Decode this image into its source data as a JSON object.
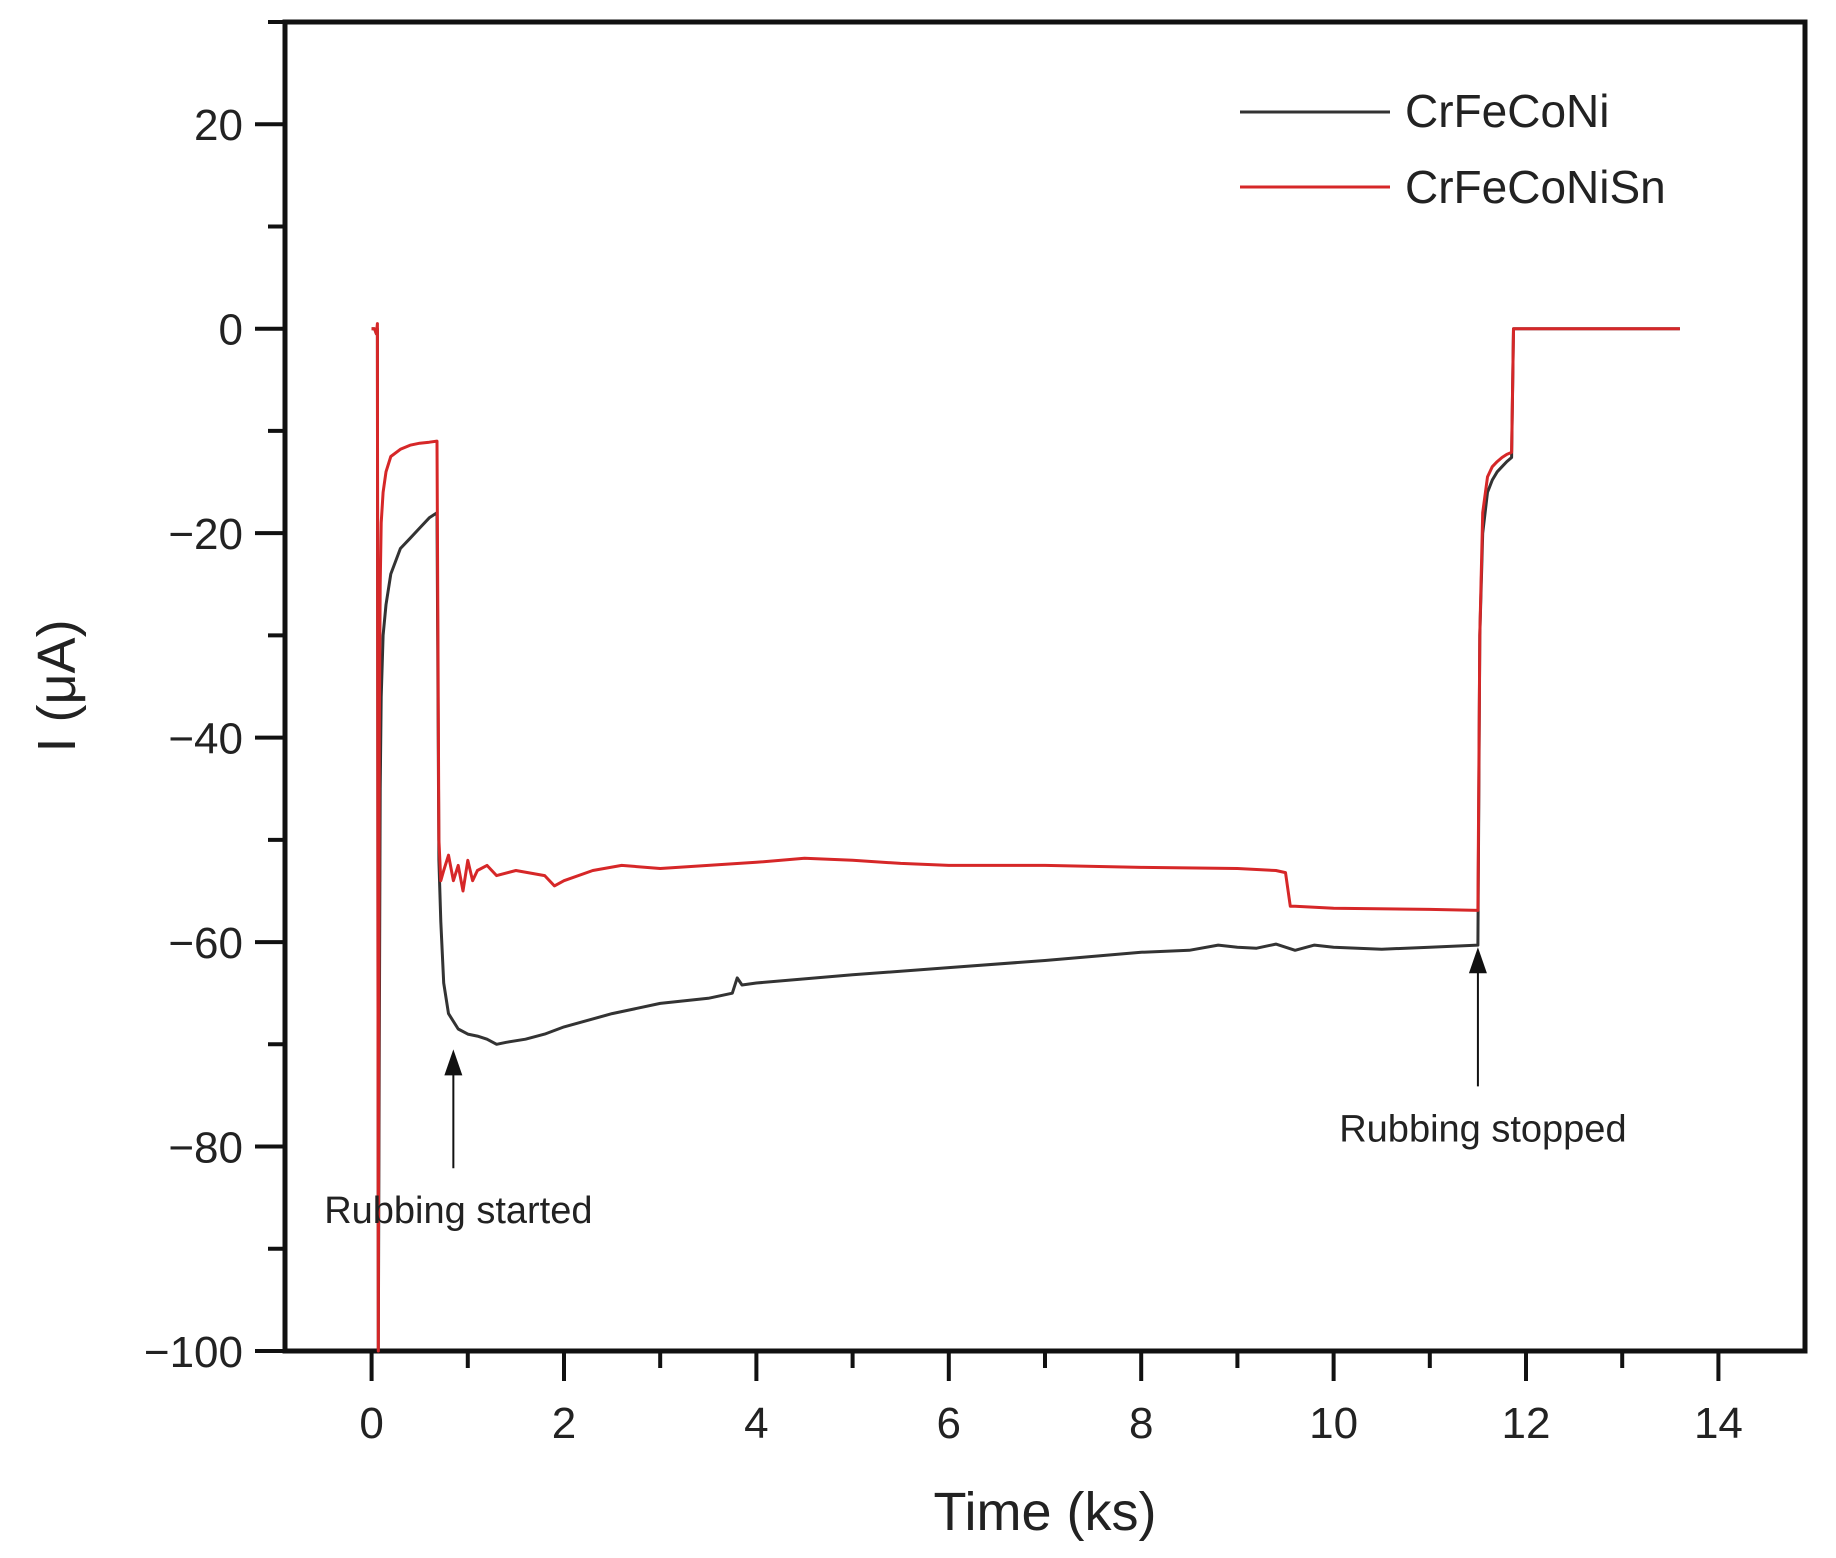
{
  "chart_data": {
    "type": "line",
    "title": "",
    "xlabel": "Time (ks)",
    "ylabel": "I (μA)",
    "xlim": [
      -0.9,
      14.9
    ],
    "ylim": [
      -100,
      30
    ],
    "x_ticks": [
      0,
      2,
      4,
      6,
      8,
      10,
      12,
      14
    ],
    "x_tick_labels": [
      "0",
      "2",
      "4",
      "6",
      "8",
      "10",
      "12",
      "14"
    ],
    "y_ticks": [
      20,
      0,
      -20,
      -40,
      -60,
      -80,
      -100
    ],
    "y_tick_labels": [
      "20",
      "0",
      "−20",
      "−40",
      "−60",
      "−80",
      "−100"
    ],
    "legend_position": "top-right",
    "series": [
      {
        "name": "CrFeCoNi",
        "color": "#333333",
        "x": [
          0.0,
          0.03,
          0.05,
          0.06,
          0.07,
          0.08,
          0.09,
          0.1,
          0.12,
          0.15,
          0.2,
          0.3,
          0.4,
          0.5,
          0.6,
          0.68,
          0.7,
          0.72,
          0.75,
          0.8,
          0.9,
          1.0,
          1.1,
          1.2,
          1.3,
          1.4,
          1.6,
          1.8,
          2.0,
          2.5,
          3.0,
          3.5,
          3.75,
          3.8,
          3.85,
          4.0,
          5.0,
          6.0,
          7.0,
          8.0,
          8.5,
          8.8,
          9.0,
          9.2,
          9.4,
          9.6,
          9.8,
          10.0,
          10.5,
          11.0,
          11.5,
          11.52,
          11.55,
          11.6,
          11.65,
          11.7,
          11.75,
          11.8,
          11.85,
          11.87,
          11.9,
          12.5,
          13.0,
          13.6
        ],
        "values": [
          0,
          0,
          -0.5,
          0,
          -100,
          -70,
          -45,
          -36,
          -30,
          -27,
          -24,
          -21.5,
          -20.5,
          -19.5,
          -18.5,
          -18,
          -52,
          -58,
          -64,
          -67,
          -68.5,
          -69,
          -69.2,
          -69.5,
          -70,
          -69.8,
          -69.5,
          -69,
          -68.3,
          -67,
          -66,
          -65.5,
          -65,
          -63.5,
          -64.2,
          -64,
          -63.2,
          -62.5,
          -61.8,
          -61,
          -60.8,
          -60.3,
          -60.5,
          -60.6,
          -60.2,
          -60.8,
          -60.3,
          -60.5,
          -60.7,
          -60.5,
          -60.3,
          -30,
          -20,
          -16,
          -14.8,
          -14,
          -13.5,
          -13,
          -12.6,
          0,
          0,
          0,
          0,
          0
        ]
      },
      {
        "name": "CrFeCoNiSn",
        "color": "#d62728",
        "x": [
          0.0,
          0.03,
          0.05,
          0.06,
          0.07,
          0.08,
          0.09,
          0.1,
          0.12,
          0.15,
          0.2,
          0.3,
          0.4,
          0.5,
          0.6,
          0.68,
          0.7,
          0.72,
          0.75,
          0.8,
          0.85,
          0.9,
          0.95,
          1.0,
          1.05,
          1.1,
          1.2,
          1.3,
          1.5,
          1.8,
          1.9,
          2.0,
          2.3,
          2.6,
          3.0,
          3.5,
          4.0,
          4.5,
          5.0,
          5.5,
          6.0,
          7.0,
          8.0,
          9.0,
          9.4,
          9.5,
          9.55,
          9.6,
          9.8,
          10.0,
          11.0,
          11.5,
          11.52,
          11.55,
          11.6,
          11.65,
          11.7,
          11.75,
          11.8,
          11.85,
          11.87,
          11.9,
          12.5,
          13.0,
          13.6
        ],
        "values": [
          0,
          0,
          -0.5,
          0.5,
          -100,
          -40,
          -25,
          -19,
          -16,
          -14,
          -12.5,
          -11.8,
          -11.4,
          -11.2,
          -11.1,
          -11,
          -50,
          -54,
          -53,
          -51.5,
          -54,
          -52.5,
          -55,
          -52,
          -54,
          -53,
          -52.5,
          -53.5,
          -53,
          -53.5,
          -54.5,
          -54,
          -53,
          -52.5,
          -52.8,
          -52.5,
          -52.2,
          -51.8,
          -52,
          -52.3,
          -52.5,
          -52.5,
          -52.7,
          -52.8,
          -53,
          -53.2,
          -56.5,
          -56.5,
          -56.6,
          -56.7,
          -56.8,
          -56.9,
          -30,
          -18,
          -14.5,
          -13.5,
          -13,
          -12.6,
          -12.3,
          -12.1,
          0,
          0,
          0,
          0,
          0
        ]
      }
    ],
    "annotations": [
      {
        "text": "Rubbing started",
        "x": 0.85,
        "y": -70.5,
        "direction": "up",
        "text_y": -87.5
      },
      {
        "text": "Rubbing stopped",
        "x": 11.5,
        "y": -60.5,
        "direction": "up",
        "text_y": -79.5
      }
    ]
  }
}
